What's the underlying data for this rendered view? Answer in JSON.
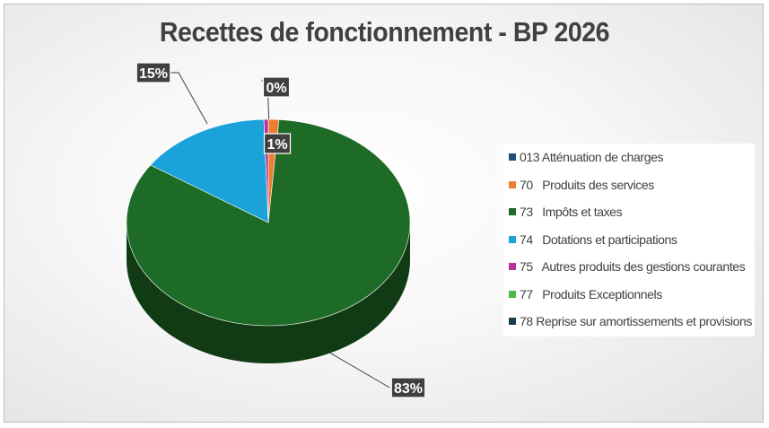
{
  "chart_data": {
    "type": "pie",
    "title": "Recettes de fonctionnement - BP 2026",
    "legend_position": "right",
    "slices": [
      {
        "name": "013 Atténuation de charges",
        "value": 0.0,
        "color": "#1F4E79"
      },
      {
        "name": "70   Produits des services",
        "value": 1.2,
        "color": "#ED7D31"
      },
      {
        "name": "73   Impôts et taxes",
        "value": 83.2,
        "color": "#1E6B27"
      },
      {
        "name": "74   Dotations et participations",
        "value": 15.1,
        "color": "#1AA3DA"
      },
      {
        "name": "75   Autres produits des gestions courantes",
        "value": 0.5,
        "color": "#B8339C"
      },
      {
        "name": "77   Produits Exceptionnels",
        "value": 0.0,
        "color": "#4CB848"
      },
      {
        "name": "78 Reprise sur amortissements et provisions",
        "value": 0.0,
        "color": "#1B3A4B"
      }
    ],
    "data_labels": [
      "0%",
      "1%",
      "83%",
      "15%"
    ]
  }
}
